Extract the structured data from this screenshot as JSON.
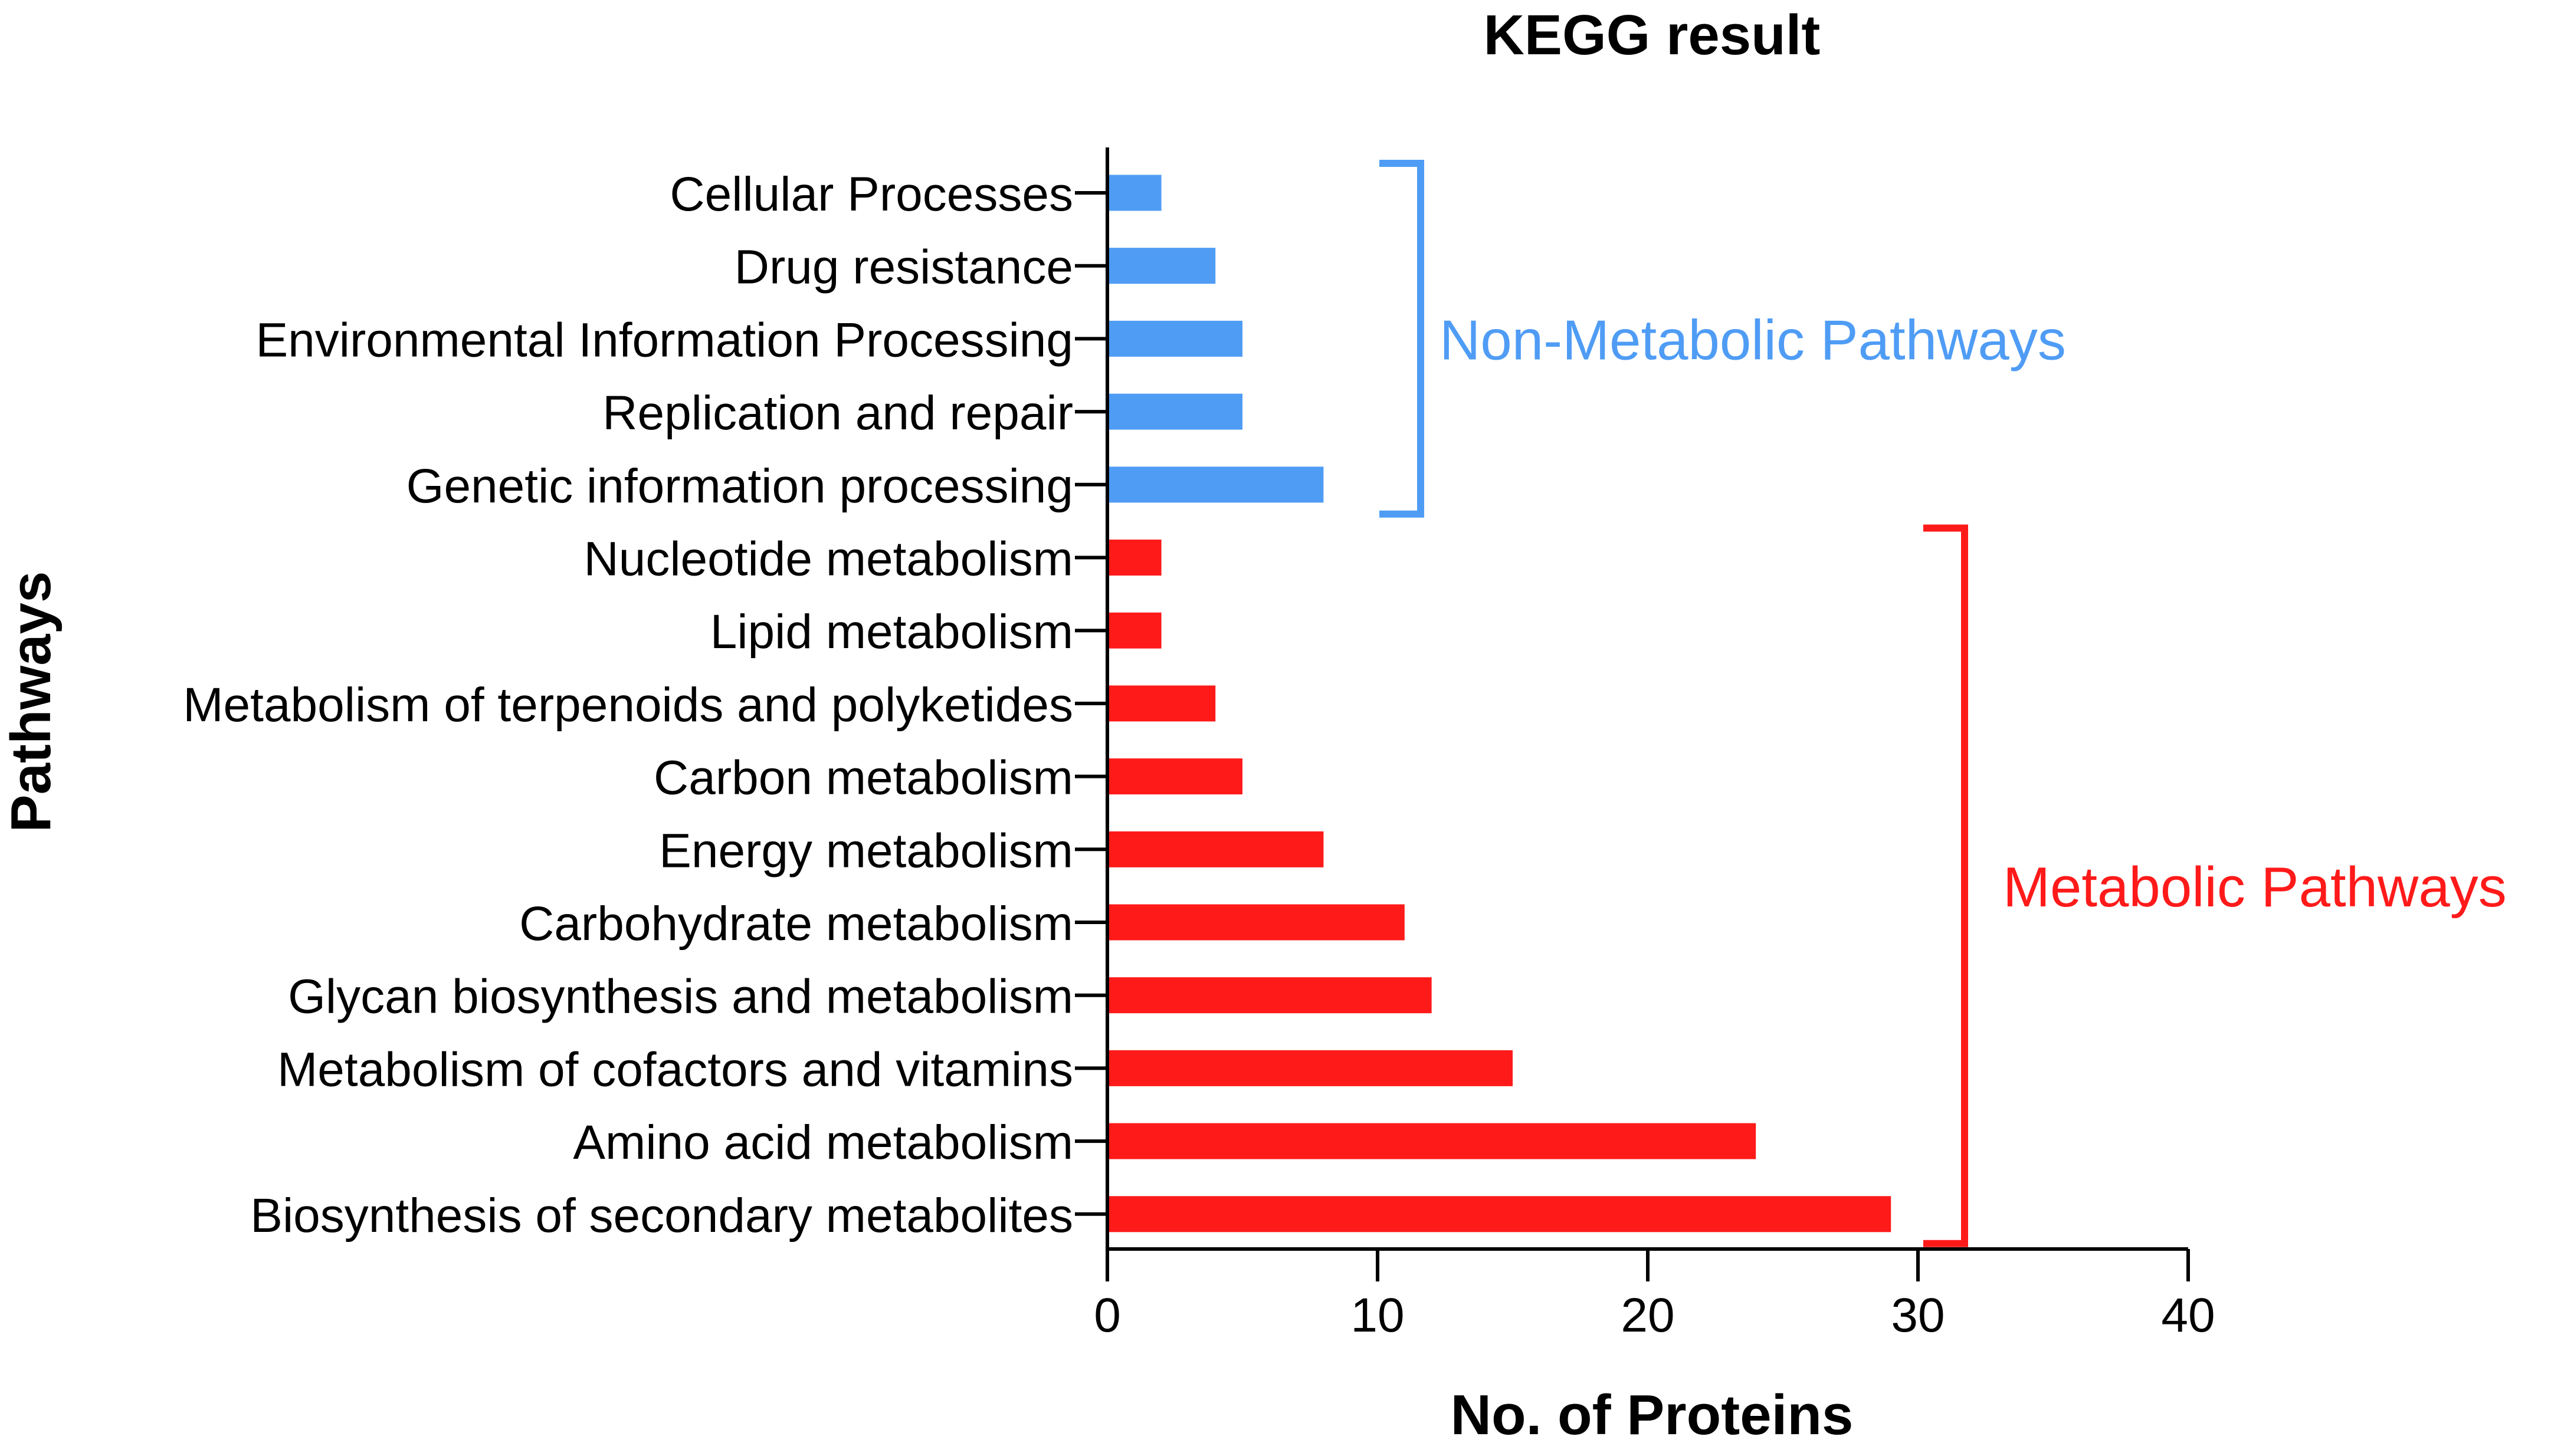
{
  "chart_data": {
    "type": "bar",
    "orientation": "horizontal",
    "title": "KEGG result",
    "xlabel": "No. of Proteins",
    "ylabel": "Pathways",
    "xlim": [
      0,
      40
    ],
    "xticks": [
      0,
      10,
      20,
      30,
      40
    ],
    "grid": false,
    "categories": [
      "Cellular Processes",
      "Drug resistance",
      "Environmental Information Processing",
      "Replication and repair",
      "Genetic information processing",
      "Nucleotide metabolism",
      "Lipid metabolism",
      "Metabolism of terpenoids and polyketides",
      "Carbon metabolism",
      "Energy metabolism",
      "Carbohydrate metabolism",
      "Glycan biosynthesis and metabolism",
      "Metabolism of cofactors and vitamins",
      "Amino acid metabolism",
      "Biosynthesis of secondary metabolites"
    ],
    "values": [
      2,
      4,
      5,
      5,
      8,
      2,
      2,
      4,
      5,
      8,
      11,
      12,
      15,
      24,
      29
    ],
    "groups": [
      {
        "name": "Non-Metabolic Pathways",
        "color": "#4f9cf5",
        "first": 0,
        "last": 4
      },
      {
        "name": "Metabolic Pathways",
        "color": "#ff1a1a",
        "first": 5,
        "last": 14
      }
    ]
  },
  "colors": {
    "axis": "#000000",
    "text": "#000000"
  }
}
